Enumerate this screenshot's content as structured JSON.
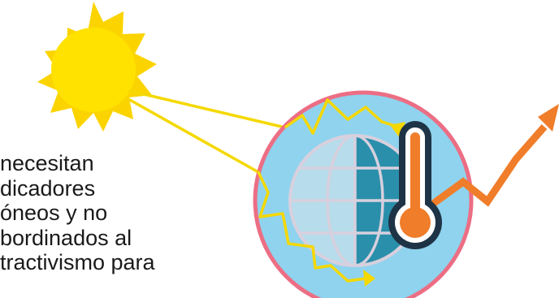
{
  "caption": {
    "lines": [
      "necesitan",
      "dicadores",
      "óneos y no",
      "bordinados al",
      "tractivismo para"
    ],
    "color": "#1a1a1a"
  },
  "colors": {
    "sun_body": "#ffe200",
    "sun_rays": "#fbd400",
    "light_beam": "#f5d800",
    "circle_fill": "#8fd3ee",
    "circle_border": "#ec6e84",
    "globe_left": "#b7dceb",
    "globe_right": "#2a8faa",
    "globe_lines": "#d8d0de",
    "thermometer_outline": "#1e3346",
    "thermometer_liquid": "#f07d2a",
    "trend_arrow": "#f07d2a"
  },
  "icons": [
    "sun-icon",
    "globe-icon",
    "thermometer-icon",
    "trend-up-arrow-icon",
    "zigzag-heat-ray-icon"
  ]
}
